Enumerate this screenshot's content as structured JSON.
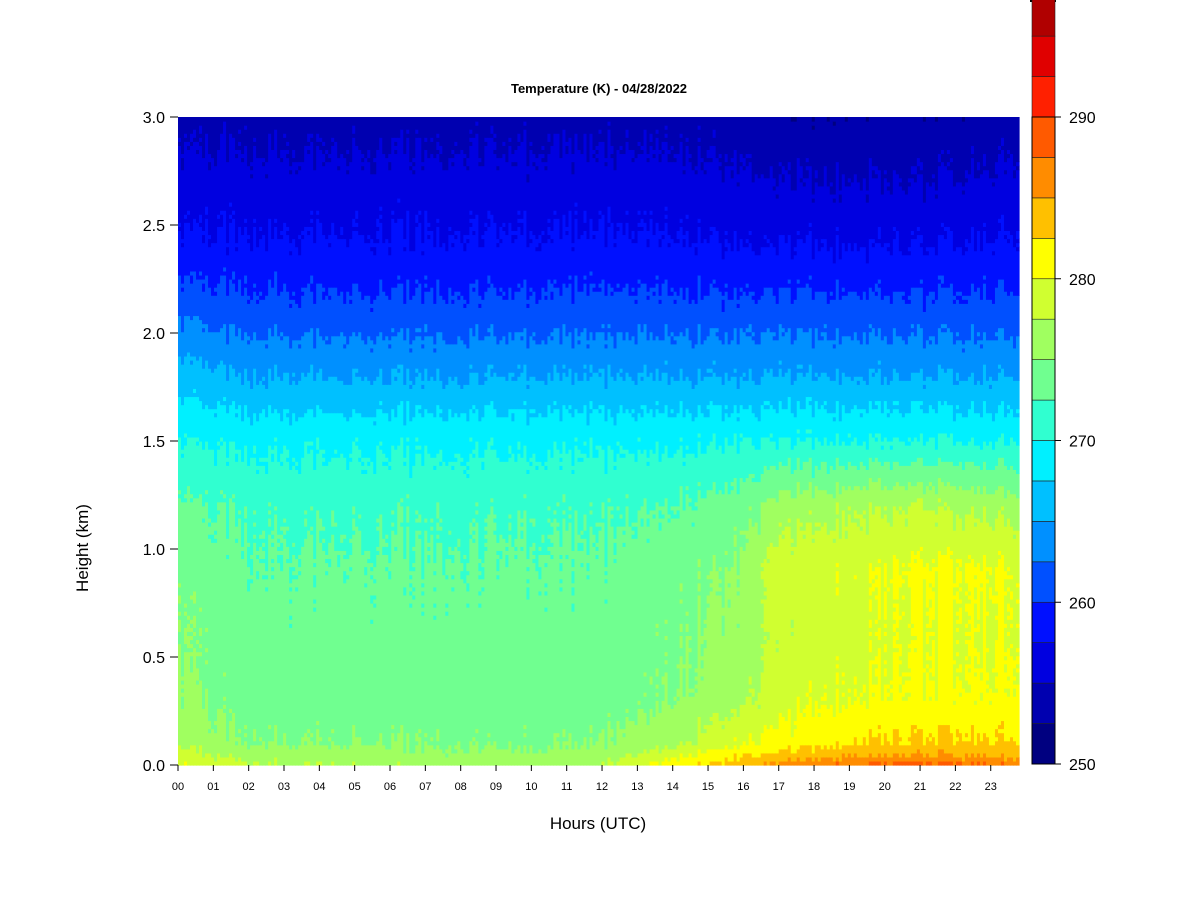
{
  "chart_data": {
    "type": "heatmap",
    "title": "Temperature (K) - 04/28/2022",
    "xlabel": "Hours (UTC)",
    "ylabel": "Height (km)",
    "x_ticks": [
      "00",
      "01",
      "02",
      "03",
      "04",
      "05",
      "06",
      "07",
      "08",
      "09",
      "10",
      "11",
      "12",
      "13",
      "14",
      "15",
      "16",
      "17",
      "18",
      "19",
      "20",
      "21",
      "22",
      "23"
    ],
    "y_ticks": [
      "0.0",
      "0.5",
      "1.0",
      "1.5",
      "2.0",
      "2.5",
      "3.0"
    ],
    "xlim": [
      0,
      23.8
    ],
    "ylim": [
      0,
      3.0
    ],
    "colorbar": {
      "ticks": [
        "250",
        "260",
        "270",
        "280",
        "290"
      ],
      "range": [
        250,
        290
      ],
      "step": 2.5,
      "colors": [
        "#000080",
        "#0000b0",
        "#0000e0",
        "#0010ff",
        "#0050ff",
        "#0090ff",
        "#00c0ff",
        "#00f0ff",
        "#30ffd0",
        "#70ff90",
        "#a0ff60",
        "#d0ff30",
        "#ffff00",
        "#ffc000",
        "#ff8c00",
        "#ff5a00",
        "#ff2000",
        "#e00000",
        "#b00000",
        "#800000"
      ]
    },
    "height_profile_km": [
      0.0,
      0.03,
      0.1,
      0.3,
      0.6,
      0.9,
      1.2,
      1.5,
      1.8,
      2.1,
      2.4,
      2.7,
      3.0
    ],
    "hour_profiles": [
      {
        "hour": 0,
        "temperature_K": [
          280,
          279,
          277,
          275.5,
          275,
          274.5,
          273,
          270,
          266,
          262,
          258,
          256,
          254
        ]
      },
      {
        "hour": 2,
        "temperature_K": [
          278,
          277,
          275,
          273.5,
          273.5,
          273,
          272,
          269.5,
          265,
          261,
          258,
          256,
          254
        ]
      },
      {
        "hour": 6,
        "temperature_K": [
          277,
          276.5,
          275,
          273.5,
          273.5,
          273,
          272,
          269.5,
          265,
          261,
          258,
          256,
          254
        ]
      },
      {
        "hour": 10,
        "temperature_K": [
          276.5,
          276,
          274.5,
          273.5,
          273.5,
          273,
          272,
          269.5,
          265,
          261,
          258,
          256,
          254
        ]
      },
      {
        "hour": 12,
        "temperature_K": [
          277,
          276.5,
          275,
          273.5,
          273.5,
          273,
          272,
          269.5,
          265,
          261,
          258,
          256,
          254
        ]
      },
      {
        "hour": 14,
        "temperature_K": [
          282,
          280,
          277,
          275,
          274.5,
          274,
          272.5,
          269.5,
          265,
          261,
          258,
          256,
          254
        ]
      },
      {
        "hour": 16,
        "temperature_K": [
          284,
          283,
          280,
          277,
          276,
          275.5,
          274,
          270,
          265,
          261,
          257.5,
          255.5,
          253.5
        ]
      },
      {
        "hour": 17,
        "temperature_K": [
          286,
          284,
          281,
          279,
          278,
          279,
          276,
          270,
          265,
          261,
          257.5,
          255,
          253
        ]
      },
      {
        "hour": 19,
        "temperature_K": [
          288,
          285.5,
          282.5,
          280,
          279,
          279.5,
          277,
          270,
          265,
          261,
          257.5,
          255,
          253
        ]
      },
      {
        "hour": 21,
        "temperature_K": [
          289,
          286,
          283,
          280.5,
          280,
          280.5,
          277.5,
          270,
          265,
          261,
          257.5,
          255,
          253
        ]
      },
      {
        "hour": 23,
        "temperature_K": [
          288,
          285.5,
          283,
          280.5,
          280,
          280.5,
          277,
          270,
          265,
          261,
          258,
          255.5,
          253.5
        ]
      },
      {
        "hour": 23.8,
        "temperature_K": [
          287,
          285,
          283,
          280.5,
          280,
          280,
          276.5,
          270,
          265,
          261,
          258,
          256,
          254
        ]
      }
    ]
  }
}
